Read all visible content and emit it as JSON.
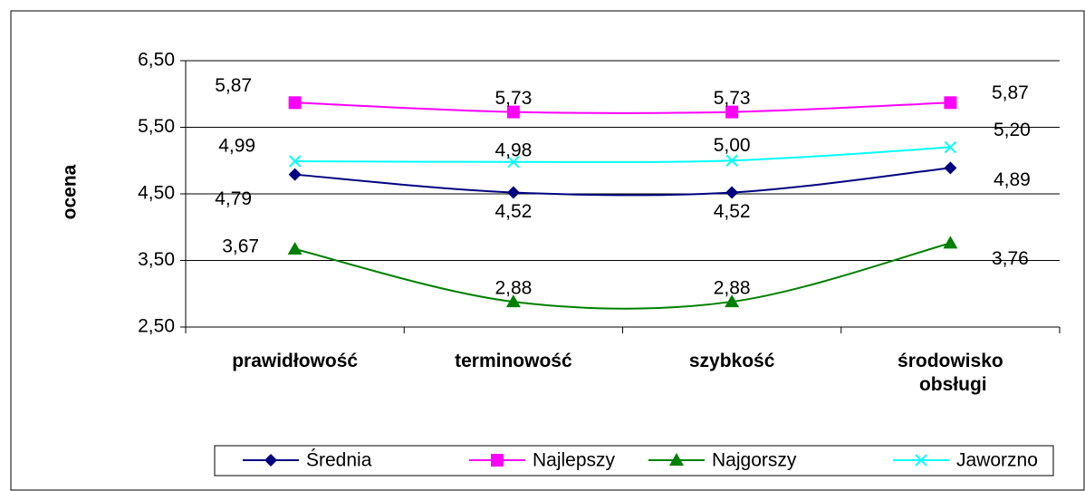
{
  "chart_data": {
    "type": "line",
    "y_label": "ocena",
    "categories": [
      "prawidłowość",
      "terminowość",
      "szybkość",
      "środowisko obsługi"
    ],
    "series": [
      {
        "name": "Średnia",
        "color": "#000080",
        "marker": "diamond",
        "values": [
          4.79,
          4.52,
          4.52,
          4.89
        ],
        "value_labels": [
          "4,79",
          "4,52",
          "4,52",
          "4,89"
        ]
      },
      {
        "name": "Najlepszy",
        "color": "#ff00ff",
        "marker": "square",
        "values": [
          5.87,
          5.73,
          5.73,
          5.87
        ],
        "value_labels": [
          "5,87",
          "5,73",
          "5,73",
          "5,87"
        ]
      },
      {
        "name": "Najgorszy",
        "color": "#008000",
        "marker": "triangle",
        "values": [
          3.67,
          2.88,
          2.88,
          3.76
        ],
        "value_labels": [
          "3,67",
          "2,88",
          "2,88",
          "3,76"
        ]
      },
      {
        "name": "Jaworzno",
        "color": "#00ffff",
        "marker": "x",
        "values": [
          4.99,
          4.98,
          5.0,
          5.2
        ],
        "value_labels": [
          "4,99",
          "4,98",
          "5,00",
          "5,20"
        ]
      }
    ],
    "ylim": [
      2.5,
      6.5
    ],
    "yticks": [
      {
        "value": 2.5,
        "label": "2,50"
      },
      {
        "value": 3.5,
        "label": "3,50"
      },
      {
        "value": 4.5,
        "label": "4,50"
      },
      {
        "value": 5.5,
        "label": "5,50"
      },
      {
        "value": 6.5,
        "label": "6,50"
      }
    ],
    "grid": true,
    "smooth": true,
    "legend": "bottom"
  }
}
